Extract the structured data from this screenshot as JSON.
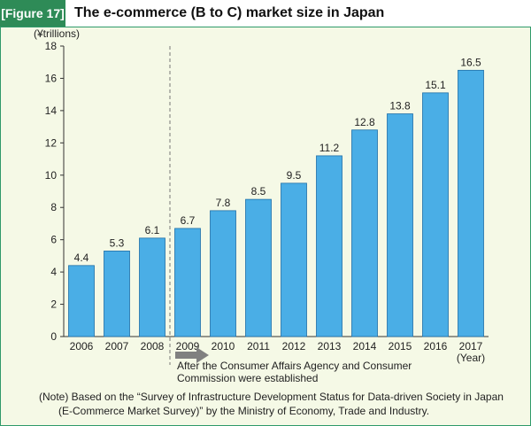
{
  "header": {
    "figure_label": "[Figure 17]",
    "title": "The e-commerce (B to C) market size in Japan"
  },
  "colors": {
    "bar": "#4aaee6",
    "bar_stroke": "#1f6fa8",
    "header_accent": "#2e8b57",
    "background": "#f5f9e6",
    "arrow": "#808080"
  },
  "annotation": {
    "text_line1": "After the Consumer Affairs Agency and Consumer",
    "text_line2": "Commission were established",
    "divider_after_category": "2008",
    "icon": "right-arrow-icon"
  },
  "note": {
    "line1": "(Note) Based on the “Survey of Infrastructure Development Status for Data-driven Society in Japan",
    "line2": "(E-Commerce Market Survey)” by the Ministry of Economy, Trade and Industry."
  },
  "chart_data": {
    "type": "bar",
    "title": "The e-commerce (B to C) market size in Japan",
    "ylabel": "(¥trillions)",
    "xlabel": "(Year)",
    "ylim": [
      0,
      18
    ],
    "yticks": [
      0,
      2,
      4,
      6,
      8,
      10,
      12,
      14,
      16,
      18
    ],
    "grid": false,
    "categories": [
      "2006",
      "2007",
      "2008",
      "2009",
      "2010",
      "2011",
      "2012",
      "2013",
      "2014",
      "2015",
      "2016",
      "2017"
    ],
    "values": [
      4.4,
      5.3,
      6.1,
      6.7,
      7.8,
      8.5,
      9.5,
      11.2,
      12.8,
      13.8,
      15.1,
      16.5
    ],
    "value_labels": [
      "4.4",
      "5.3",
      "6.1",
      "6.7",
      "7.8",
      "8.5",
      "9.5",
      "11.2",
      "12.8",
      "13.8",
      "15.1",
      "16.5"
    ]
  }
}
